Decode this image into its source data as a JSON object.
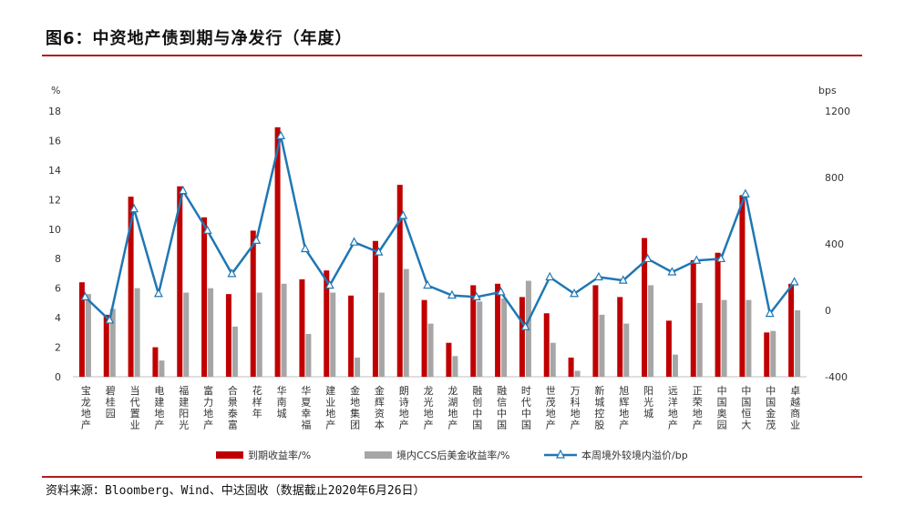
{
  "header": {
    "title": "图6：中资地产债到期与净发行（年度）"
  },
  "footer": {
    "source": "资料来源：Bloomberg、Wind、中达固收（数据截止2020年6月26日）"
  },
  "colors": {
    "accent": "#b31b1b",
    "bar_ytm": "#c00000",
    "bar_ccs": "#a6a6a6",
    "line_spread": "#1f77b4"
  },
  "chart_data": {
    "type": "bar",
    "title": "",
    "y_unit_left": "%",
    "y_unit_right": "bps",
    "ylim_left": [
      0,
      18
    ],
    "yticks_left": [
      "0",
      "2",
      "4",
      "6",
      "8",
      "10",
      "12",
      "14",
      "16",
      "18"
    ],
    "ylim_right": [
      -400,
      1200
    ],
    "yticks_right": [
      "-400",
      "0",
      "400",
      "800",
      "1200"
    ],
    "categories": [
      "宝龙地产",
      "碧桂园",
      "当代置业",
      "电建地产",
      "福建阳光",
      "富力地产",
      "合景泰富",
      "花样年",
      "华南城",
      "华夏幸福",
      "建业地产",
      "金地集团",
      "金辉资本",
      "朗诗地产",
      "龙光地产",
      "龙湖地产",
      "融创中国",
      "融信中国",
      "时代中国",
      "世茂地产",
      "万科地产",
      "新城控股",
      "旭辉地产",
      "阳光城",
      "远洋地产",
      "正荣地产",
      "中国奥园",
      "中国恒大",
      "中国金茂",
      "卓越商业"
    ],
    "series": [
      {
        "name": "到期收益率/%",
        "type": "bar",
        "axis": "left",
        "values": [
          6.4,
          4.2,
          12.2,
          2.0,
          12.9,
          10.8,
          5.6,
          9.9,
          16.9,
          6.6,
          7.2,
          5.5,
          9.2,
          13.0,
          5.2,
          2.3,
          6.2,
          6.3,
          5.4,
          4.3,
          1.3,
          6.2,
          5.4,
          9.4,
          3.8,
          7.9,
          8.4,
          12.3,
          3.0,
          6.3
        ]
      },
      {
        "name": "境内CCS后美金收益率/%",
        "type": "bar",
        "axis": "left",
        "values": [
          5.6,
          4.6,
          6.0,
          1.1,
          5.7,
          6.0,
          3.4,
          5.7,
          6.3,
          2.9,
          5.7,
          1.3,
          5.7,
          7.3,
          3.6,
          1.4,
          5.1,
          5.3,
          6.5,
          2.3,
          0.4,
          4.2,
          3.6,
          6.2,
          1.5,
          5.0,
          5.2,
          5.2,
          3.1,
          4.5
        ]
      },
      {
        "name": "本周境外较境内溢价/bp",
        "type": "line",
        "axis": "right",
        "values": [
          80,
          -60,
          610,
          100,
          720,
          480,
          220,
          420,
          1050,
          370,
          150,
          410,
          350,
          570,
          150,
          90,
          80,
          110,
          -100,
          200,
          100,
          200,
          180,
          310,
          230,
          300,
          310,
          700,
          -20,
          170
        ]
      }
    ]
  }
}
